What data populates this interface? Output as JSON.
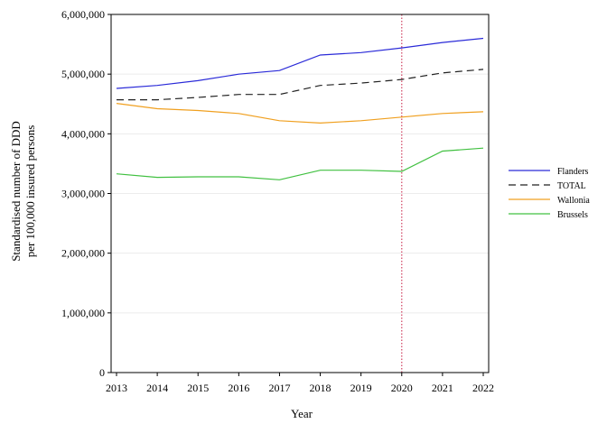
{
  "chart_data": {
    "type": "line",
    "title": "",
    "xlabel": "Year",
    "ylabel_line1": "Standardised number of DDD",
    "ylabel_line2": "per 100,000 insured persons",
    "x": [
      2013,
      2014,
      2015,
      2016,
      2017,
      2018,
      2019,
      2020,
      2021,
      2022
    ],
    "xlim": [
      2013,
      2022
    ],
    "ylim": [
      0,
      6000000
    ],
    "yticks": [
      0,
      1000000,
      2000000,
      3000000,
      4000000,
      5000000,
      6000000
    ],
    "ytick_labels": [
      "0",
      "1,000,000",
      "2,000,000",
      "3,000,000",
      "4,000,000",
      "5,000,000",
      "6,000,000"
    ],
    "grid": "horizontal",
    "legend_position": "right",
    "reference_line": {
      "x": 2020,
      "color": "#d04060",
      "style": "dotted"
    },
    "series": [
      {
        "name": "Flanders",
        "color": "#2a2ad8",
        "dash": "solid",
        "values": [
          4760000,
          4810000,
          4890000,
          5000000,
          5060000,
          5320000,
          5360000,
          5440000,
          5530000,
          5600000
        ]
      },
      {
        "name": "TOTAL",
        "color": "#222222",
        "dash": "dashed",
        "values": [
          4570000,
          4570000,
          4610000,
          4660000,
          4660000,
          4810000,
          4850000,
          4910000,
          5020000,
          5080000
        ]
      },
      {
        "name": "Wallonia",
        "color": "#f0a020",
        "dash": "solid",
        "values": [
          4510000,
          4420000,
          4390000,
          4340000,
          4220000,
          4180000,
          4220000,
          4280000,
          4340000,
          4370000
        ]
      },
      {
        "name": "Brussels",
        "color": "#40c040",
        "dash": "solid",
        "values": [
          3330000,
          3270000,
          3280000,
          3280000,
          3230000,
          3390000,
          3390000,
          3370000,
          3710000,
          3760000
        ]
      }
    ]
  }
}
